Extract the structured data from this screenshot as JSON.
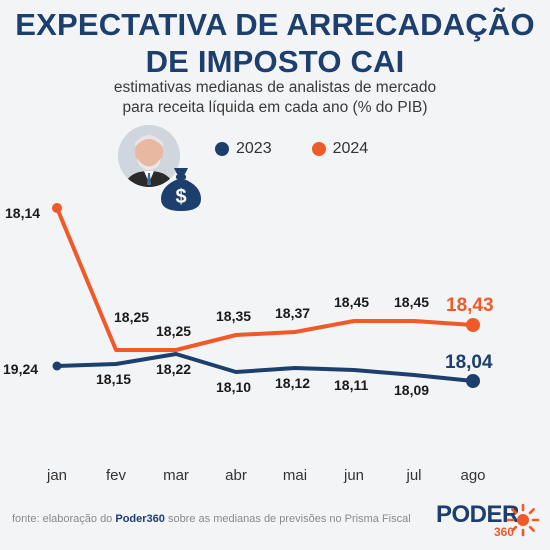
{
  "title_line1": "EXPECTATIVA DE ARRECADAÇÃO",
  "title_line2": "DE IMPOSTO CAI",
  "subtitle_line1": "estimativas medianas de analistas de mercado",
  "subtitle_line2": "para receita líquida em cada ano (% do PIB)",
  "bag_symbol": "$",
  "colors": {
    "s2023": "#1c3f6e",
    "s2024": "#f05a28",
    "title": "#1c3f6e"
  },
  "footer": {
    "prefix": "fonte: elaboração do ",
    "brand": "Poder360",
    "suffix": " sobre as medianas de previsões no Prisma Fiscal"
  },
  "logo": {
    "text": "PODER",
    "sub": "360"
  },
  "chart_data": {
    "type": "line",
    "categories": [
      "jan",
      "fev",
      "mar",
      "abr",
      "mai",
      "jun",
      "jul",
      "ago"
    ],
    "series": [
      {
        "name": "2023",
        "values": [
          19.24,
          18.15,
          18.22,
          18.1,
          18.12,
          18.11,
          18.09,
          18.04
        ],
        "labels": [
          "19,24",
          "18,15",
          "18,22",
          "18,10",
          "18,12",
          "18,11",
          "18,09",
          "18,04"
        ]
      },
      {
        "name": "2024",
        "values": [
          18.14,
          18.25,
          18.25,
          18.35,
          18.37,
          18.45,
          18.45,
          18.43
        ],
        "labels": [
          "18,14",
          "18,25",
          "18,25",
          "18,35",
          "18,37",
          "18,45",
          "18,45",
          "18,43"
        ]
      }
    ],
    "grid": false,
    "legend": "top"
  }
}
